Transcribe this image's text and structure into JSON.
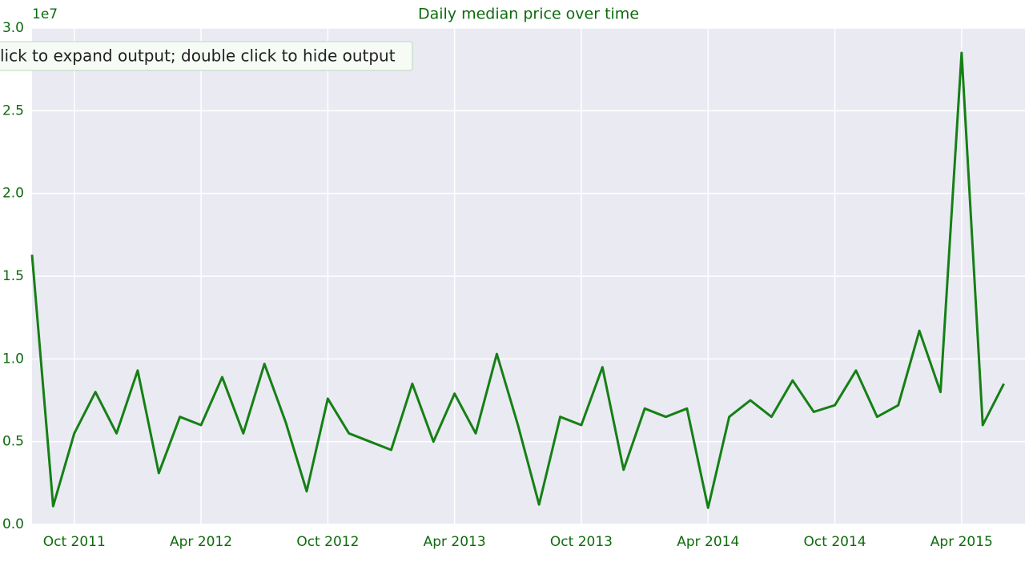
{
  "chart_data": {
    "type": "line",
    "title": "Daily median price over time",
    "y_offset_label": "1e7",
    "tooltip": "lick to expand output; double click to hide output",
    "x": [
      "2011-08",
      "2011-09",
      "2011-10",
      "2011-11",
      "2011-12",
      "2012-01",
      "2012-02",
      "2012-03",
      "2012-04",
      "2012-05",
      "2012-06",
      "2012-07",
      "2012-08",
      "2012-09",
      "2012-10",
      "2012-11",
      "2012-12",
      "2013-01",
      "2013-02",
      "2013-03",
      "2013-04",
      "2013-05",
      "2013-06",
      "2013-07",
      "2013-08",
      "2013-09",
      "2013-10",
      "2013-11",
      "2013-12",
      "2014-01",
      "2014-02",
      "2014-03",
      "2014-04",
      "2014-05",
      "2014-06",
      "2014-07",
      "2014-08",
      "2014-09",
      "2014-10",
      "2014-11",
      "2014-12",
      "2015-01",
      "2015-02",
      "2015-03",
      "2015-04",
      "2015-05",
      "2015-06"
    ],
    "series": [
      {
        "color": "#158015",
        "values": [
          1.63,
          0.11,
          0.55,
          0.8,
          0.55,
          0.93,
          0.31,
          0.65,
          0.6,
          0.89,
          0.55,
          0.97,
          0.62,
          0.2,
          0.76,
          0.55,
          0.5,
          0.45,
          0.85,
          0.5,
          0.79,
          0.55,
          1.03,
          0.6,
          0.12,
          0.65,
          0.6,
          0.95,
          0.33,
          0.7,
          0.65,
          0.7,
          0.1,
          0.65,
          0.75,
          0.65,
          0.87,
          0.68,
          0.72,
          0.93,
          0.65,
          0.72,
          1.17,
          0.8,
          2.85,
          0.6,
          0.85
        ]
      }
    ],
    "xlim": [
      "2011-08",
      "2015-07"
    ],
    "xticks": [
      {
        "value": "2011-10",
        "label": "Oct 2011"
      },
      {
        "value": "2012-04",
        "label": "Apr 2012"
      },
      {
        "value": "2012-10",
        "label": "Oct 2012"
      },
      {
        "value": "2013-04",
        "label": "Apr 2013"
      },
      {
        "value": "2013-10",
        "label": "Oct 2013"
      },
      {
        "value": "2014-04",
        "label": "Apr 2014"
      },
      {
        "value": "2014-10",
        "label": "Oct 2014"
      },
      {
        "value": "2015-04",
        "label": "Apr 2015"
      }
    ],
    "ylim": [
      0,
      3
    ],
    "yticks": [
      {
        "value": 0,
        "label": "0.0"
      },
      {
        "value": 0.5,
        "label": "0.5"
      },
      {
        "value": 1,
        "label": "1.0"
      },
      {
        "value": 1.5,
        "label": "1.5"
      },
      {
        "value": 2,
        "label": "2.0"
      },
      {
        "value": 2.5,
        "label": "2.5"
      },
      {
        "value": 3,
        "label": "3.0"
      }
    ],
    "grid": true
  }
}
